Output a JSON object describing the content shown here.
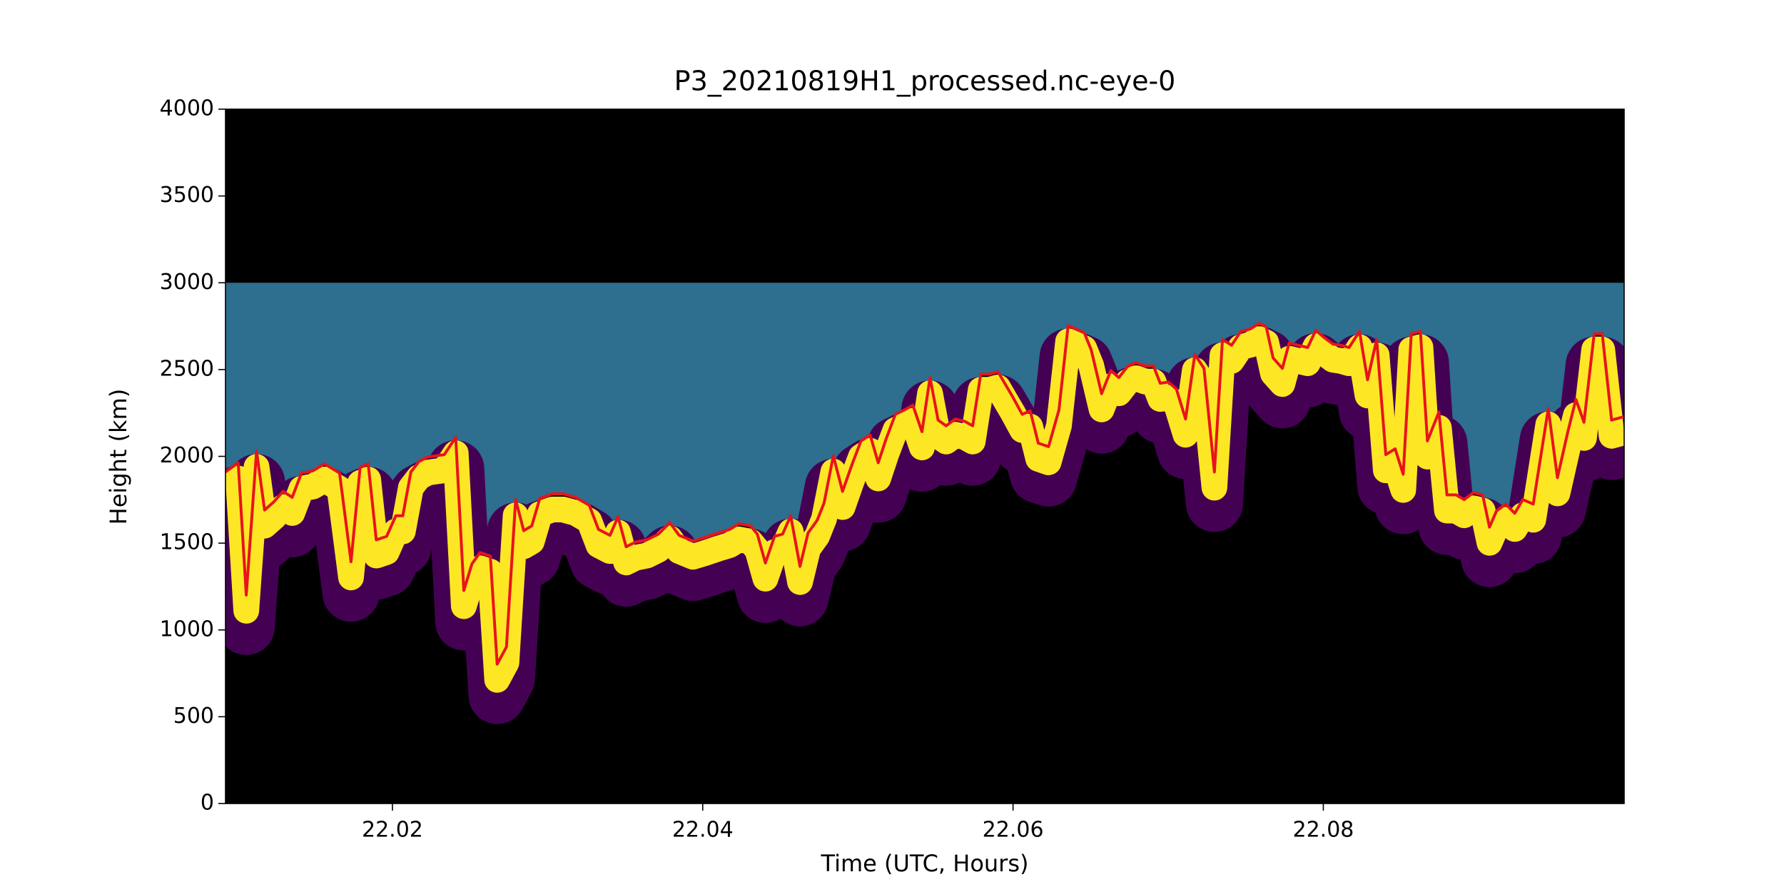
{
  "chart_data": {
    "type": "line",
    "title": "P3_20210819H1_processed.nc-eye-0",
    "xlabel": "Time (UTC, Hours)",
    "ylabel": "Height (km)",
    "xlim": [
      22.00924,
      22.09939
    ],
    "ylim": [
      0,
      4000
    ],
    "xticks": [
      22.02,
      22.04,
      22.06,
      22.08
    ],
    "yticks": [
      0,
      500,
      1000,
      1500,
      2000,
      2500,
      3000,
      3500,
      4000
    ],
    "background": "#000000",
    "heatmap_colors": [
      "#2e6e8e",
      "#fde725",
      "#440154"
    ],
    "x": [
      22.00924,
      22.01006,
      22.01058,
      22.01124,
      22.01176,
      22.01236,
      22.01295,
      22.01354,
      22.01414,
      22.01488,
      22.01562,
      22.01659,
      22.01733,
      22.01792,
      22.01844,
      22.01896,
      22.01963,
      22.02022,
      22.02067,
      22.02119,
      22.02171,
      22.0223,
      22.02334,
      22.02408,
      22.0246,
      22.02512,
      22.02564,
      22.02631,
      22.02675,
      22.02735,
      22.02794,
      22.02846,
      22.02898,
      22.0295,
      22.03031,
      22.03098,
      22.0318,
      22.03269,
      22.03328,
      22.03402,
      22.03454,
      22.03506,
      22.03566,
      22.0364,
      22.03714,
      22.03788,
      22.03848,
      22.03937,
      22.04011,
      22.041,
      22.04174,
      22.04233,
      22.04308,
      22.04352,
      22.04404,
      22.04463,
      22.04515,
      22.04567,
      22.04627,
      22.04679,
      22.04738,
      22.04782,
      22.04842,
      22.04901,
      22.04961,
      22.0502,
      22.05079,
      22.05131,
      22.05183,
      22.05242,
      22.05302,
      22.05354,
      22.05413,
      22.05465,
      22.05517,
      22.05569,
      22.05628,
      22.05688,
      22.0574,
      22.05792,
      22.05851,
      22.05903,
      22.05955,
      22.05999,
      22.06059,
      22.06111,
      22.06163,
      22.06229,
      22.06296,
      22.06355,
      22.06407,
      22.06459,
      22.06504,
      22.06571,
      22.0663,
      22.06682,
      22.06741,
      22.06793,
      22.06853,
      22.06905,
      22.06949,
      22.07001,
      22.07053,
      22.07112,
      22.07172,
      22.07231,
      22.07298,
      22.0735,
      22.07409,
      22.07468,
      22.07528,
      22.07587,
      22.07632,
      22.07676,
      22.07736,
      22.0778,
      22.07839,
      22.07899,
      22.07951,
      22.08003,
      22.08062,
      22.08114,
      22.08166,
      22.08233,
      22.08285,
      22.08344,
      22.08403,
      22.08463,
      22.08515,
      22.08567,
      22.08626,
      22.08671,
      22.08745,
      22.08797,
      22.08856,
      22.08908,
      22.08967,
      22.09027,
      22.09071,
      22.09116,
      22.09175,
      22.09234,
      22.09286,
      22.09353,
      22.0945,
      22.09509,
      22.09576,
      22.09628,
      22.0968,
      22.09746,
      22.09798,
      22.09858,
      22.09939
    ],
    "series": [
      {
        "color": "#e8141a",
        "values": [
          1910,
          1963,
          1201,
          2030,
          1691,
          1738,
          1798,
          1764,
          1904,
          1917,
          1957,
          1904,
          1393,
          1937,
          1957,
          1519,
          1539,
          1658,
          1658,
          1910,
          1970,
          1997,
          2010,
          2109,
          1227,
          1380,
          1446,
          1426,
          803,
          902,
          1751,
          1572,
          1599,
          1758,
          1784,
          1784,
          1764,
          1718,
          1579,
          1545,
          1652,
          1479,
          1506,
          1519,
          1552,
          1618,
          1545,
          1512,
          1532,
          1559,
          1579,
          1612,
          1599,
          1552,
          1386,
          1539,
          1552,
          1658,
          1366,
          1559,
          1632,
          1731,
          2003,
          1798,
          1950,
          2089,
          2123,
          1963,
          2103,
          2242,
          2268,
          2295,
          2142,
          2454,
          2209,
          2176,
          2215,
          2202,
          2176,
          2474,
          2474,
          2487,
          2408,
          2341,
          2242,
          2262,
          2076,
          2056,
          2268,
          2753,
          2733,
          2713,
          2613,
          2361,
          2494,
          2454,
          2521,
          2540,
          2521,
          2521,
          2421,
          2428,
          2388,
          2215,
          2587,
          2507,
          1910,
          2673,
          2640,
          2720,
          2733,
          2766,
          2746,
          2567,
          2507,
          2653,
          2640,
          2627,
          2726,
          2686,
          2647,
          2640,
          2627,
          2720,
          2441,
          2673,
          2010,
          2043,
          1897,
          2706,
          2720,
          2089,
          2255,
          1778,
          1778,
          1751,
          1791,
          1778,
          1592,
          1685,
          1725,
          1672,
          1751,
          1725,
          2275,
          1877,
          2142,
          2328,
          2196,
          2706,
          2706,
          2209,
          2229
        ]
      }
    ]
  }
}
